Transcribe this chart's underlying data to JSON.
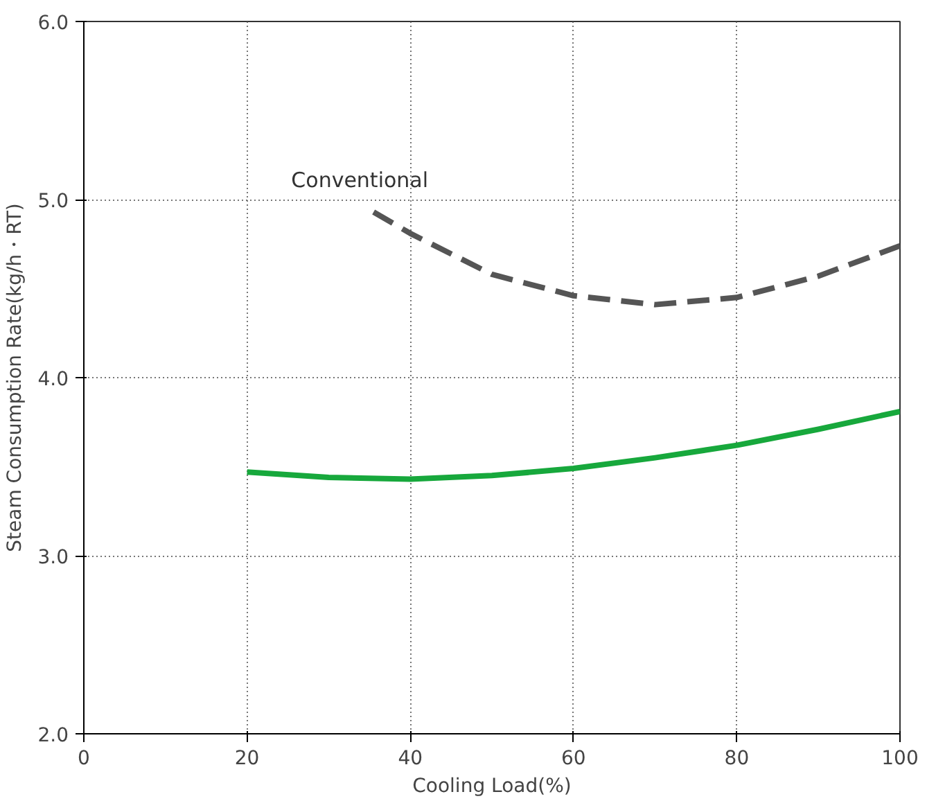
{
  "chart_data": {
    "type": "line",
    "xlabel": "Cooling Load(%)",
    "ylabel": "Steam Consumption Rate(kg/h・RT)",
    "xlim": [
      0,
      100
    ],
    "ylim": [
      2.0,
      6.0
    ],
    "xticks": [
      0,
      20,
      40,
      60,
      80,
      100
    ],
    "yticks": [
      {
        "value": 2,
        "label": "2.0"
      },
      {
        "value": 3,
        "label": "3.0"
      },
      {
        "value": 4,
        "label": "4.0"
      },
      {
        "value": 5,
        "label": "5.0"
      },
      {
        "value": 6,
        "label": "6.0"
      }
    ],
    "grid": true,
    "marker": "none",
    "series": [
      {
        "name": "Conventional",
        "color": "#555555",
        "line_style": "dashed",
        "x": [
          35.5,
          40,
          50,
          60,
          70,
          80,
          90,
          100
        ],
        "values": [
          4.93,
          4.81,
          4.58,
          4.46,
          4.41,
          4.45,
          4.57,
          4.74
        ]
      },
      {
        "color": "#17a83c",
        "line_style": "solid",
        "x": [
          20,
          30,
          40,
          50,
          60,
          70,
          80,
          90,
          100
        ],
        "values": [
          3.47,
          3.44,
          3.43,
          3.45,
          3.49,
          3.55,
          3.62,
          3.71,
          3.81
        ]
      }
    ]
  }
}
